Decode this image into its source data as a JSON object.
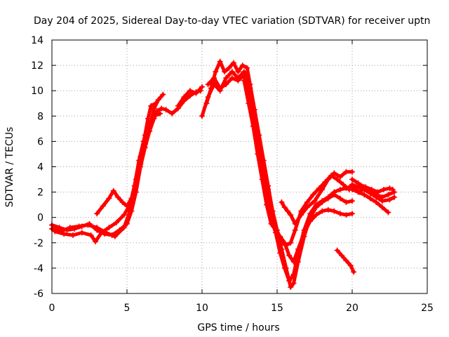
{
  "chart_data": {
    "type": "scatter",
    "title": "Day 204 of 2025, Sidereal Day-to-day VTEC variation (SDTVAR) for receiver uptn",
    "xlabel": "GPS time / hours",
    "ylabel": "SDTVAR / TECUs",
    "xlim": [
      0,
      25
    ],
    "ylim": [
      -6,
      14
    ],
    "xticks": [
      0,
      5,
      10,
      15,
      20,
      25
    ],
    "yticks": [
      -6,
      -4,
      -2,
      0,
      2,
      4,
      6,
      8,
      10,
      12,
      14
    ],
    "grid": true,
    "marker": "+",
    "color": "#ff0000",
    "series": [
      {
        "name": "trace-1",
        "x": [
          0,
          0.6,
          1.2,
          1.8,
          2.4,
          3.0,
          3.6,
          4.2,
          4.8,
          5.2,
          5.5,
          5.8,
          6.1,
          6.4,
          6.8,
          7.2
        ],
        "y": [
          -0.9,
          -1.1,
          -0.8,
          -0.7,
          -0.6,
          -0.8,
          -1.2,
          -1.5,
          -0.8,
          0.5,
          2.5,
          4.5,
          6.0,
          7.2,
          8.0,
          8.2
        ]
      },
      {
        "name": "trace-2",
        "x": [
          0,
          0.5,
          1.0,
          1.5,
          2.0,
          2.5,
          3.0,
          3.5,
          4.0,
          4.5,
          5.0,
          5.3,
          5.6,
          5.9,
          6.2,
          6.5,
          6.8,
          7.0,
          7.3,
          7.6,
          8.0,
          8.4,
          8.8,
          9.2,
          9.6,
          9.9
        ],
        "y": [
          -0.6,
          -0.8,
          -1.0,
          -0.9,
          -0.7,
          -0.5,
          -1.0,
          -1.3,
          -1.4,
          -1.0,
          -0.5,
          0.5,
          2.0,
          4.0,
          5.5,
          6.8,
          7.8,
          8.4,
          8.6,
          8.5,
          8.2,
          8.6,
          9.2,
          9.6,
          9.9,
          10.0
        ]
      },
      {
        "name": "trace-3",
        "x": [
          0.2,
          0.8,
          1.4,
          2.0,
          2.6,
          2.9,
          3.3,
          3.8,
          4.3,
          4.8,
          5.2,
          5.6,
          5.9,
          6.2,
          6.5,
          6.8,
          7.1,
          7.4
        ],
        "y": [
          -1.1,
          -1.3,
          -1.4,
          -1.2,
          -1.4,
          -1.9,
          -1.2,
          -0.8,
          -0.4,
          0.2,
          1.0,
          2.5,
          4.2,
          5.8,
          7.0,
          8.6,
          9.3,
          9.7
        ]
      },
      {
        "name": "trace-4",
        "x": [
          3.0,
          3.4,
          3.8,
          4.1,
          4.4,
          4.7,
          5.0,
          5.3,
          5.6,
          5.9,
          6.2,
          6.4,
          6.6,
          6.9
        ],
        "y": [
          0.3,
          0.9,
          1.5,
          2.1,
          1.6,
          1.2,
          0.9,
          1.5,
          3.0,
          4.8,
          6.5,
          7.8,
          8.8,
          9.0
        ]
      },
      {
        "name": "trace-5",
        "x": [
          8.4,
          8.8,
          9.2,
          9.6,
          10.0
        ],
        "y": [
          8.8,
          9.5,
          10.0,
          9.8,
          10.3
        ]
      },
      {
        "name": "trace-6",
        "x": [
          10.3,
          10.6,
          10.9,
          11.2,
          11.5,
          11.8,
          12.1,
          12.4,
          12.7,
          13.0,
          13.2,
          13.5,
          13.8,
          14.1,
          14.4,
          14.7,
          15.0,
          15.3,
          15.6,
          15.9,
          16.1,
          16.4,
          16.8,
          17.2,
          17.6,
          18.0,
          18.4,
          18.8,
          19.2,
          19.6,
          20.0
        ],
        "y": [
          9.0,
          10.2,
          11.5,
          12.3,
          11.5,
          11.8,
          12.2,
          11.5,
          12.0,
          11.8,
          10.5,
          8.5,
          6.5,
          4.5,
          2.5,
          0.5,
          -1.0,
          -2.5,
          -4.0,
          -5.5,
          -5.2,
          -3.5,
          -1.5,
          0.0,
          0.8,
          1.2,
          1.5,
          1.8,
          1.5,
          1.2,
          1.3
        ]
      },
      {
        "name": "trace-7",
        "x": [
          10.4,
          10.8,
          11.2,
          11.6,
          12.0,
          12.4,
          12.8,
          13.1,
          13.4,
          13.7,
          14.0,
          14.3,
          14.6,
          14.9,
          15.2,
          15.5,
          15.8,
          16.1,
          16.4,
          16.8,
          17.2,
          17.6,
          18.0,
          18.4,
          18.8,
          19.2,
          19.6,
          20.0
        ],
        "y": [
          10.5,
          11.0,
          10.2,
          10.5,
          11.0,
          10.8,
          11.2,
          9.8,
          7.8,
          5.8,
          3.8,
          2.0,
          0.3,
          -1.2,
          -2.8,
          -4.0,
          -5.0,
          -4.5,
          -2.8,
          -1.0,
          0.3,
          1.0,
          1.3,
          1.6,
          2.0,
          2.2,
          2.3,
          2.5
        ]
      },
      {
        "name": "trace-8",
        "x": [
          10.0,
          10.4,
          10.8,
          11.2,
          11.6,
          12.0,
          12.4,
          12.8,
          13.2,
          13.5,
          13.8,
          14.1,
          14.4,
          14.7,
          15.0,
          15.3,
          15.6,
          15.9,
          16.2,
          16.6,
          17.0,
          17.4,
          17.8,
          18.2,
          18.6,
          19.0,
          19.4,
          19.8
        ],
        "y": [
          8.0,
          9.5,
          10.5,
          10.0,
          11.0,
          11.5,
          11.0,
          11.5,
          10.2,
          8.0,
          6.0,
          4.0,
          2.2,
          0.5,
          -1.2,
          -2.0,
          -2.2,
          -2.0,
          -1.0,
          0.5,
          1.2,
          1.8,
          2.3,
          2.8,
          3.3,
          3.0,
          2.6,
          2.2
        ]
      },
      {
        "name": "trace-9",
        "x": [
          12.8,
          13.1,
          13.4,
          13.7,
          14.0,
          14.3,
          14.6,
          14.9,
          15.2,
          15.5,
          15.8,
          16.1,
          16.4,
          16.8,
          17.2,
          17.6,
          18.0,
          18.4,
          18.8,
          19.2,
          19.6,
          20.0
        ],
        "y": [
          10.8,
          9.0,
          7.2,
          5.0,
          3.0,
          1.0,
          -0.5,
          -1.0,
          -1.5,
          -2.0,
          -3.0,
          -3.5,
          -2.5,
          -1.2,
          -0.3,
          0.2,
          0.5,
          0.6,
          0.5,
          0.3,
          0.2,
          0.3
        ]
      },
      {
        "name": "trace-10",
        "x": [
          15.3,
          15.5,
          15.7,
          15.9,
          16.2,
          16.6,
          17.0,
          17.5,
          18.0,
          18.4,
          18.8,
          19.2,
          19.6,
          20.0
        ],
        "y": [
          1.2,
          0.8,
          0.5,
          0.2,
          -0.5,
          0.2,
          0.8,
          1.3,
          2.2,
          3.0,
          3.5,
          3.2,
          3.6,
          3.6
        ]
      },
      {
        "name": "trace-11",
        "x": [
          19.0,
          19.3,
          19.6,
          19.9,
          20.1
        ],
        "y": [
          -2.6,
          -3.0,
          -3.4,
          -3.8,
          -4.3
        ]
      },
      {
        "name": "trace-12",
        "x": [
          20.0,
          20.4,
          20.8,
          21.2,
          21.6,
          22.0,
          22.4,
          22.8
        ],
        "y": [
          3.0,
          2.7,
          2.4,
          2.1,
          1.8,
          1.6,
          1.8,
          2.0
        ]
      },
      {
        "name": "trace-13",
        "x": [
          20.1,
          20.5,
          20.9,
          21.3,
          21.7,
          22.1,
          22.5,
          22.7
        ],
        "y": [
          2.3,
          2.0,
          2.4,
          2.2,
          2.0,
          2.2,
          2.3,
          2.2
        ]
      },
      {
        "name": "trace-14",
        "x": [
          20.0,
          20.4,
          20.8,
          21.2,
          21.6,
          22.0,
          22.4
        ],
        "y": [
          2.2,
          2.0,
          1.8,
          1.5,
          1.2,
          0.8,
          0.4
        ]
      },
      {
        "name": "trace-15",
        "x": [
          20.0,
          20.4,
          20.8,
          21.2,
          21.6,
          22.0,
          22.5,
          22.8
        ],
        "y": [
          2.6,
          2.4,
          2.2,
          1.9,
          1.6,
          1.3,
          1.4,
          1.6
        ]
      }
    ]
  }
}
